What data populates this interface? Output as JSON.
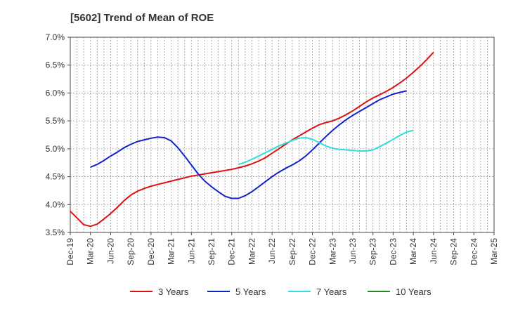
{
  "chart_data": {
    "type": "line",
    "title": "[5602]  Trend of Mean of ROE",
    "xlabel": "",
    "ylabel": "",
    "ylim": [
      3.5,
      7.0
    ],
    "y_ticks": [
      3.5,
      4.0,
      4.5,
      5.0,
      5.5,
      6.0,
      6.5,
      7.0
    ],
    "y_tick_labels": [
      "3.5%",
      "4.0%",
      "4.5%",
      "5.0%",
      "5.5%",
      "6.0%",
      "6.5%",
      "7.0%"
    ],
    "x_ticks": [
      "Dec-19",
      "Mar-20",
      "Jun-20",
      "Sep-20",
      "Dec-20",
      "Mar-21",
      "Jun-21",
      "Sep-21",
      "Dec-21",
      "Mar-22",
      "Jun-22",
      "Sep-22",
      "Dec-22",
      "Mar-23",
      "Jun-23",
      "Sep-23",
      "Dec-23",
      "Mar-24",
      "Jun-24",
      "Sep-24",
      "Dec-24",
      "Mar-25"
    ],
    "grid": true,
    "legend_position": "bottom",
    "series": [
      {
        "name": "3 Years",
        "color": "#dd1111",
        "values": [
          3.88,
          3.76,
          3.64,
          3.61,
          3.65,
          3.74,
          3.84,
          3.95,
          4.07,
          4.17,
          4.24,
          4.29,
          4.33,
          4.36,
          4.39,
          4.42,
          4.45,
          4.48,
          4.51,
          4.53,
          4.55,
          4.57,
          4.59,
          4.61,
          4.63,
          4.66,
          4.69,
          4.73,
          4.78,
          4.84,
          4.92,
          5.0,
          5.08,
          5.16,
          5.23,
          5.3,
          5.37,
          5.43,
          5.47,
          5.5,
          5.55,
          5.61,
          5.68,
          5.76,
          5.84,
          5.91,
          5.97,
          6.03,
          6.1,
          6.18,
          6.27,
          6.37,
          6.48,
          6.6,
          6.73
        ]
      },
      {
        "name": "5 Years",
        "color": "#1122cc",
        "values": [
          null,
          null,
          null,
          4.67,
          4.72,
          4.79,
          4.87,
          4.94,
          5.02,
          5.08,
          5.13,
          5.16,
          5.19,
          5.21,
          5.2,
          5.14,
          5.02,
          4.87,
          4.71,
          4.55,
          4.42,
          4.32,
          4.23,
          4.15,
          4.11,
          4.11,
          4.16,
          4.23,
          4.32,
          4.41,
          4.5,
          4.58,
          4.65,
          4.71,
          4.78,
          4.87,
          4.98,
          5.1,
          5.22,
          5.33,
          5.43,
          5.52,
          5.6,
          5.67,
          5.74,
          5.81,
          5.88,
          5.93,
          5.98,
          6.01,
          6.04
        ]
      },
      {
        "name": "7 Years",
        "color": "#33dddd",
        "values": [
          null,
          null,
          null,
          null,
          null,
          null,
          null,
          null,
          null,
          null,
          null,
          null,
          null,
          null,
          null,
          null,
          null,
          null,
          null,
          null,
          null,
          null,
          null,
          null,
          null,
          4.72,
          4.76,
          4.81,
          4.87,
          4.93,
          4.99,
          5.05,
          5.1,
          5.15,
          5.19,
          5.2,
          5.17,
          5.11,
          5.05,
          5.01,
          4.99,
          4.98,
          4.97,
          4.96,
          4.96,
          4.98,
          5.04,
          5.1,
          5.17,
          5.24,
          5.3,
          5.33
        ]
      },
      {
        "name": "10 Years",
        "color": "#228822",
        "values": []
      }
    ]
  }
}
